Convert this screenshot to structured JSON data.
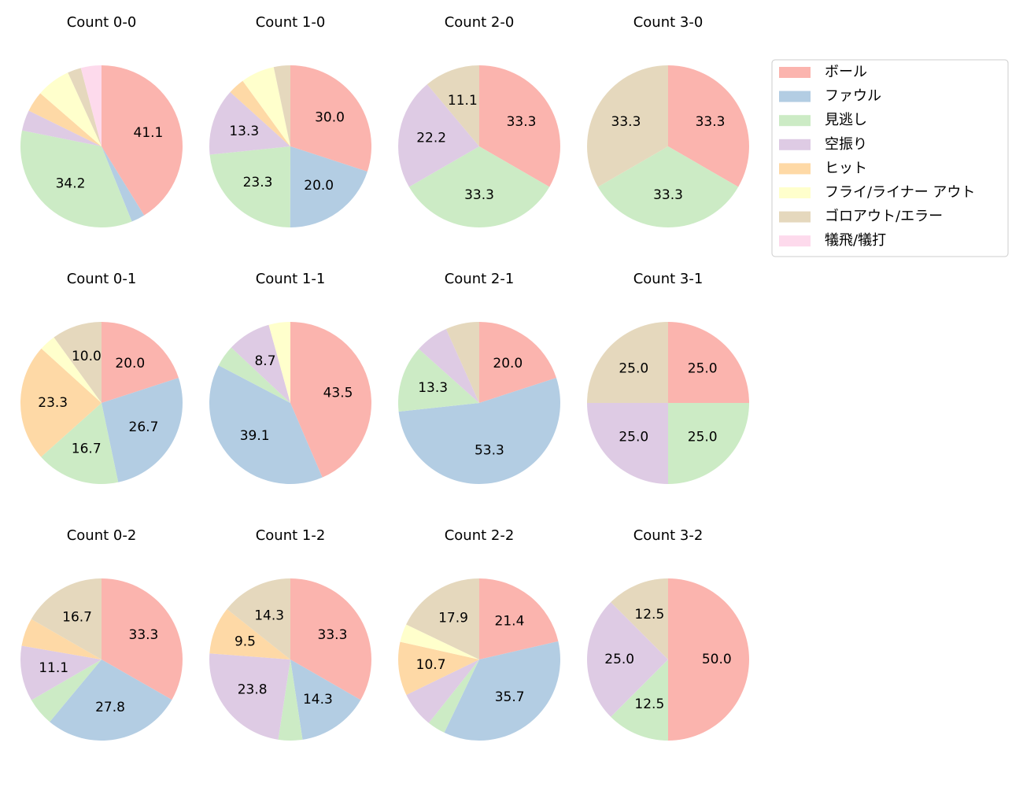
{
  "chart_data": {
    "type": "pie",
    "categories": [
      "ボール",
      "ファウル",
      "見逃し",
      "空振り",
      "ヒット",
      "フライ/ライナー アウト",
      "ゴロアウト/エラー",
      "犠飛/犠打"
    ],
    "colors": [
      "#fbb4ae",
      "#b3cde3",
      "#ccebc5",
      "#decbe4",
      "#fed9a6",
      "#ffffcc",
      "#e5d8bd",
      "#fddaec"
    ],
    "pies": [
      {
        "title": "Count 0-0",
        "values": [
          41.1,
          2.7,
          34.2,
          4.1,
          4.1,
          6.8,
          2.7,
          4.1
        ],
        "value_labels": [
          "41.1",
          null,
          "34.2",
          null,
          null,
          null,
          null,
          null
        ]
      },
      {
        "title": "Count 1-0",
        "values": [
          30.0,
          20.0,
          23.3,
          13.3,
          3.3,
          6.7,
          3.3,
          0
        ],
        "value_labels": [
          "30.0",
          "20.0",
          "23.3",
          "13.3",
          null,
          null,
          null,
          null
        ]
      },
      {
        "title": "Count 2-0",
        "values": [
          33.3,
          0,
          33.3,
          22.2,
          0,
          0,
          11.1,
          0
        ],
        "value_labels": [
          "33.3",
          null,
          "33.3",
          "22.2",
          null,
          null,
          "11.1",
          null
        ]
      },
      {
        "title": "Count 3-0",
        "values": [
          33.3,
          0,
          33.3,
          0,
          0,
          0,
          33.3,
          0
        ],
        "value_labels": [
          "33.3",
          null,
          "33.3",
          null,
          null,
          null,
          "33.3",
          null
        ]
      },
      {
        "title": "Count 0-1",
        "values": [
          20.0,
          26.7,
          16.7,
          0,
          23.3,
          3.3,
          10.0,
          0
        ],
        "value_labels": [
          "20.0",
          "26.7",
          "16.7",
          null,
          "23.3",
          null,
          "10.0",
          null
        ]
      },
      {
        "title": "Count 1-1",
        "values": [
          43.5,
          39.1,
          4.3,
          8.7,
          0,
          4.3,
          0,
          0
        ],
        "value_labels": [
          "43.5",
          "39.1",
          null,
          "8.7",
          null,
          null,
          null,
          null
        ]
      },
      {
        "title": "Count 2-1",
        "values": [
          20.0,
          53.3,
          13.3,
          6.7,
          0,
          0,
          6.7,
          0
        ],
        "value_labels": [
          "20.0",
          "53.3",
          "13.3",
          null,
          null,
          null,
          null,
          null
        ]
      },
      {
        "title": "Count 3-1",
        "values": [
          25.0,
          0,
          25.0,
          25.0,
          0,
          0,
          25.0,
          0
        ],
        "value_labels": [
          "25.0",
          null,
          "25.0",
          "25.0",
          null,
          null,
          "25.0",
          null
        ]
      },
      {
        "title": "Count 0-2",
        "values": [
          33.3,
          27.8,
          5.6,
          11.1,
          5.6,
          0,
          16.7,
          0
        ],
        "value_labels": [
          "33.3",
          "27.8",
          null,
          "11.1",
          null,
          null,
          "16.7",
          null
        ]
      },
      {
        "title": "Count 1-2",
        "values": [
          33.3,
          14.3,
          4.8,
          23.8,
          9.5,
          0,
          14.3,
          0
        ],
        "value_labels": [
          "33.3",
          "14.3",
          null,
          "23.8",
          "9.5",
          null,
          "14.3",
          null
        ]
      },
      {
        "title": "Count 2-2",
        "values": [
          21.4,
          35.7,
          3.6,
          7.1,
          10.7,
          3.6,
          17.9,
          0
        ],
        "value_labels": [
          "21.4",
          "35.7",
          null,
          null,
          "10.7",
          null,
          "17.9",
          null
        ]
      },
      {
        "title": "Count 3-2",
        "values": [
          50.0,
          0,
          12.5,
          25.0,
          0,
          0,
          12.5,
          0
        ],
        "value_labels": [
          "50.0",
          null,
          "12.5",
          "25.0",
          null,
          null,
          "12.5",
          null
        ]
      }
    ]
  }
}
